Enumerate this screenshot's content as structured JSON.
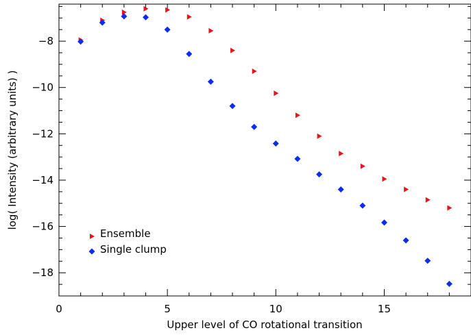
{
  "chart_data": {
    "type": "scatter",
    "xlabel": "Upper level of CO rotational transition",
    "ylabel": "log( Intensity (arbitrary units) )",
    "xlim": [
      0,
      19
    ],
    "ylim": [
      -19,
      -6.4
    ],
    "x_ticks": [
      0,
      5,
      10,
      15
    ],
    "y_ticks": [
      -18,
      -16,
      -14,
      -12,
      -10,
      -8
    ],
    "x_minor_step": 1,
    "y_minor_step": 0.5,
    "legend_position": "bottom-left",
    "series": [
      {
        "name": "Ensemble",
        "marker": "triangle-right",
        "color": "#e8141b",
        "x": [
          1,
          2,
          3,
          4,
          5,
          6,
          7,
          8,
          9,
          10,
          11,
          12,
          13,
          14,
          15,
          16,
          17,
          18
        ],
        "y": [
          -7.95,
          -7.1,
          -6.75,
          -6.6,
          -6.65,
          -6.95,
          -7.55,
          -8.4,
          -9.3,
          -10.25,
          -11.2,
          -12.1,
          -12.85,
          -13.4,
          -13.95,
          -14.4,
          -14.85,
          -15.2
        ]
      },
      {
        "name": "Single clump",
        "marker": "diamond",
        "color": "#0a2cf5",
        "x": [
          1,
          2,
          3,
          4,
          5,
          6,
          7,
          8,
          9,
          10,
          11,
          12,
          13,
          14,
          15,
          16,
          17,
          18
        ],
        "y": [
          -8.02,
          -7.2,
          -6.93,
          -6.97,
          -7.5,
          -8.55,
          -9.75,
          -10.8,
          -11.7,
          -12.42,
          -13.08,
          -13.75,
          -14.4,
          -15.1,
          -15.83,
          -16.6,
          -17.48,
          -18.48
        ]
      }
    ]
  }
}
